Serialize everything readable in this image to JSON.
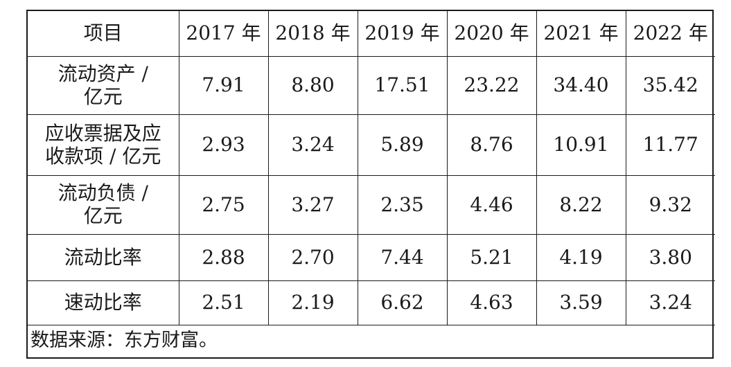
{
  "table": {
    "headers": [
      "项目",
      "2017 年",
      "2018 年",
      "2019 年",
      "2020 年",
      "2021 年",
      "2022 年"
    ],
    "rows": [
      {
        "label": "流动资产 /\n亿元",
        "values": [
          "7.91",
          "8.80",
          "17.51",
          "23.22",
          "34.40",
          "35.42"
        ]
      },
      {
        "label": "应收票据及应\n收款项 / 亿元",
        "values": [
          "2.93",
          "3.24",
          "5.89",
          "8.76",
          "10.91",
          "11.77"
        ]
      },
      {
        "label": "流动负债 /\n亿元",
        "values": [
          "2.75",
          "3.27",
          "2.35",
          "4.46",
          "8.22",
          "9.32"
        ]
      },
      {
        "label": "流动比率",
        "values": [
          "2.88",
          "2.70",
          "7.44",
          "5.21",
          "4.19",
          "3.80"
        ]
      },
      {
        "label": "速动比率",
        "values": [
          "2.51",
          "2.19",
          "6.62",
          "4.63",
          "3.59",
          "3.24"
        ]
      }
    ],
    "source": "数据来源：东方财富。"
  }
}
